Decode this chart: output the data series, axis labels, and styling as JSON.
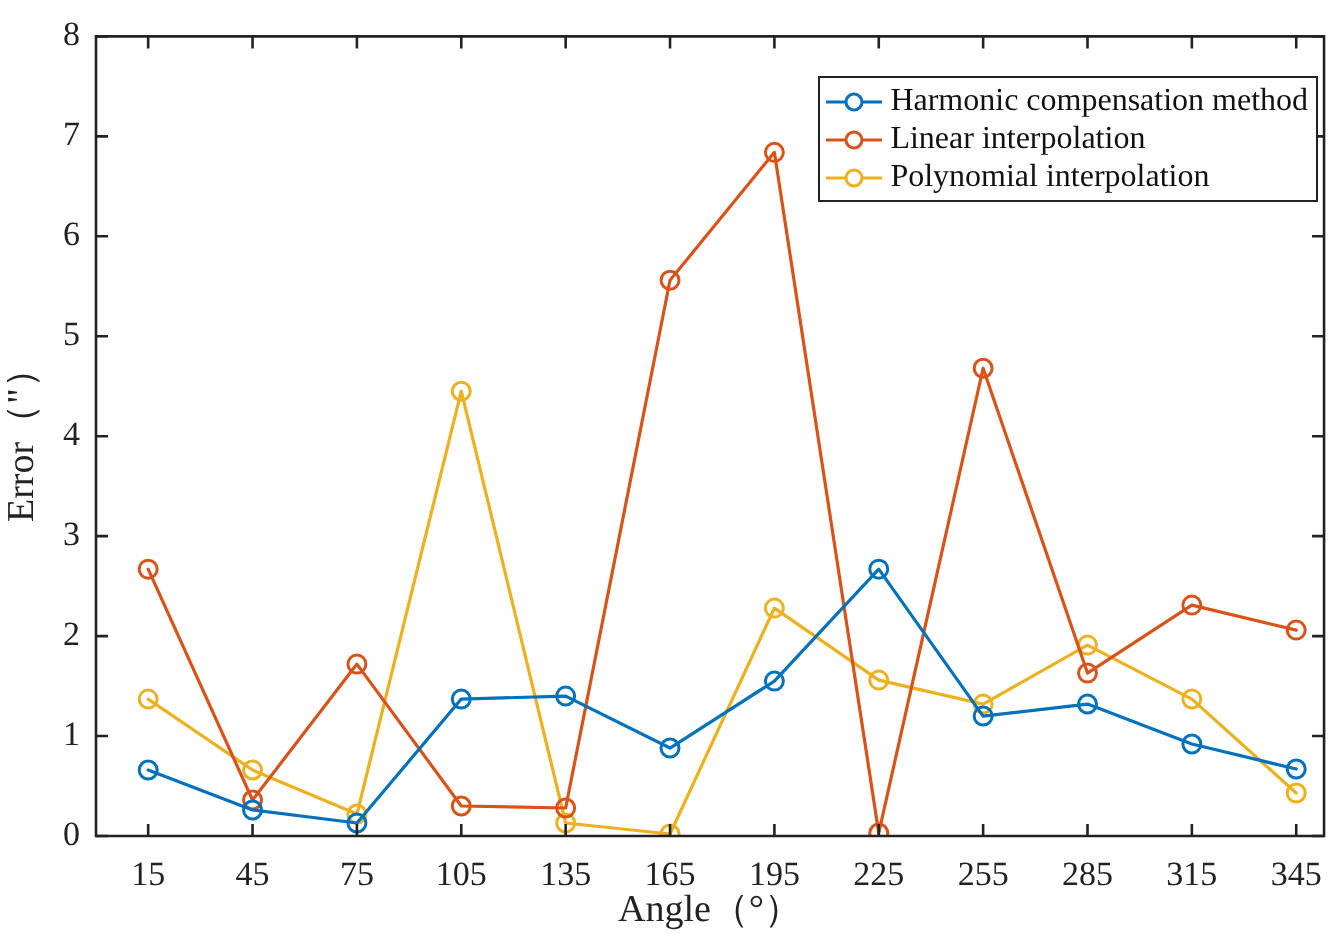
{
  "chart_data": {
    "type": "line",
    "xlabel": "Angle（°）",
    "ylabel": "Error（\"）",
    "x": [
      15,
      45,
      75,
      105,
      135,
      165,
      195,
      225,
      255,
      285,
      315,
      345
    ],
    "xlim": [
      0,
      353
    ],
    "xticks": [
      15,
      45,
      75,
      105,
      135,
      165,
      195,
      225,
      255,
      285,
      315,
      345
    ],
    "ylim": [
      0,
      8
    ],
    "yticks": [
      0,
      1,
      2,
      3,
      4,
      5,
      6,
      7,
      8
    ],
    "grid": false,
    "legend": "top right",
    "marker": "circle",
    "line_style": "solid",
    "series": [
      {
        "name": "Harmonic compensation method",
        "color": "#0072bd",
        "values": [
          0.66,
          0.26,
          0.13,
          1.37,
          1.4,
          0.88,
          1.55,
          2.67,
          1.2,
          1.32,
          0.92,
          0.67
        ]
      },
      {
        "name": "Linear interpolation",
        "color": "#d95319",
        "values": [
          2.67,
          0.36,
          1.72,
          0.3,
          0.28,
          5.56,
          6.84,
          0.03,
          4.68,
          1.63,
          2.31,
          2.06
        ]
      },
      {
        "name": "Polynomial interpolation",
        "color": "#edb120",
        "values": [
          1.37,
          0.66,
          0.22,
          4.45,
          0.13,
          0.02,
          2.28,
          1.56,
          1.32,
          1.91,
          1.37,
          0.43
        ]
      }
    ]
  }
}
